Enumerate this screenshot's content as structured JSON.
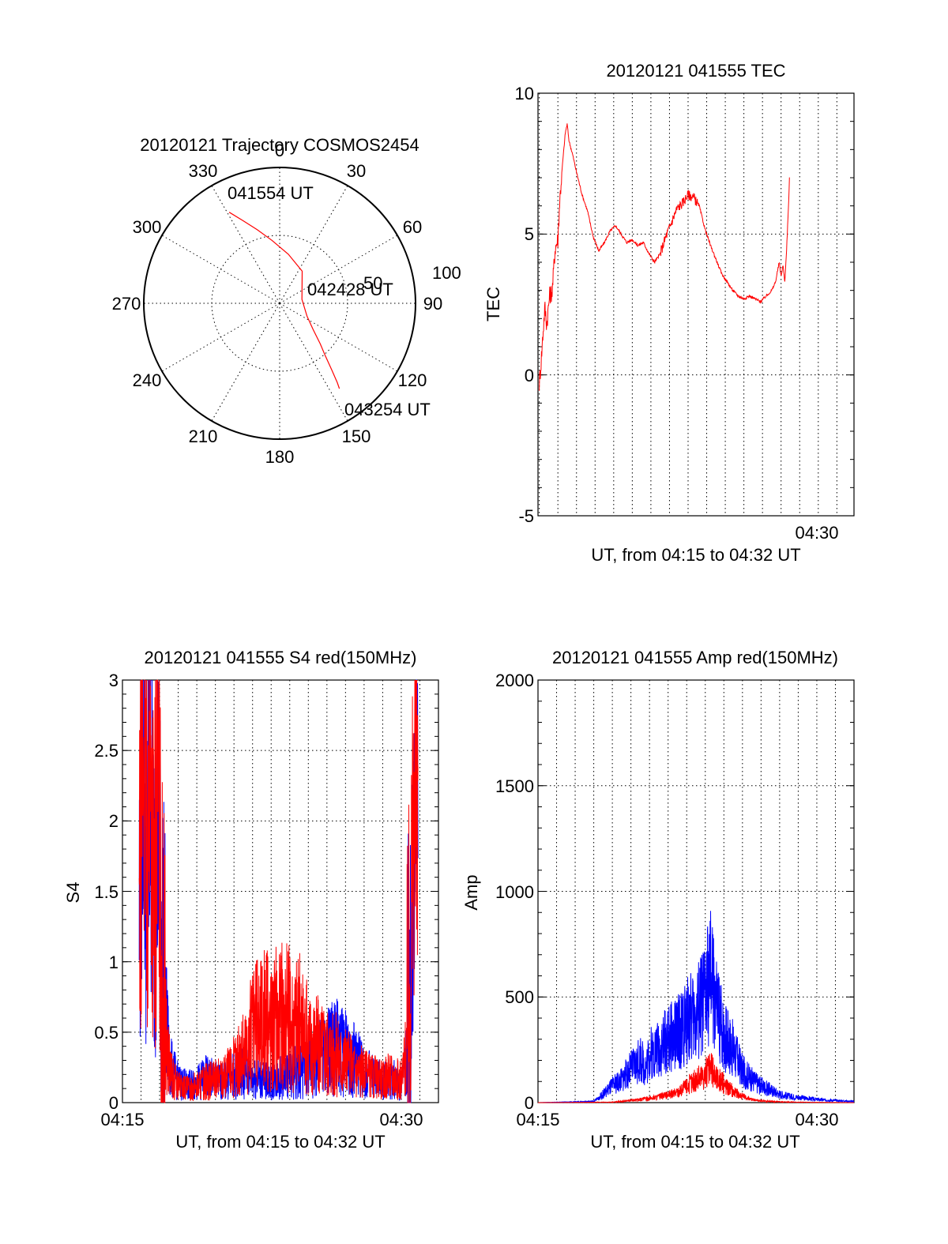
{
  "chart_data": [
    {
      "type": "polar",
      "title": "20120121 Trajectory COSMOS2454",
      "angle_ticks": [
        "0",
        "30",
        "60",
        "90",
        "120",
        "150",
        "180",
        "210",
        "240",
        "270",
        "300",
        "330"
      ],
      "radial_ticks": [
        "50",
        "100"
      ],
      "rlim": [
        0,
        100
      ],
      "grid": true,
      "series": [
        {
          "color": "#ff0000",
          "points": [
            {
              "az": 331,
              "el": 21
            },
            {
              "az": 336,
              "el": 30
            },
            {
              "az": 343,
              "el": 39
            },
            {
              "az": 353,
              "el": 48
            },
            {
              "az": 10,
              "el": 57
            },
            {
              "az": 35,
              "el": 64
            },
            {
              "az": 80,
              "el": 75
            },
            {
              "az": 115,
              "el": 70
            },
            {
              "az": 128,
              "el": 62
            },
            {
              "az": 135,
              "el": 52
            },
            {
              "az": 139,
              "el": 44
            },
            {
              "az": 142,
              "el": 34
            },
            {
              "az": 144,
              "el": 25
            },
            {
              "az": 145,
              "el": 21
            }
          ]
        }
      ],
      "annotations": [
        {
          "text": "041554 UT",
          "az": 331,
          "el": 21
        },
        {
          "text": "042428 UT",
          "az": 80,
          "el": 75
        },
        {
          "text": "043254 UT",
          "az": 145,
          "el": 21
        }
      ]
    },
    {
      "type": "line",
      "title": "20120121 041555 TEC",
      "ylabel": "TEC",
      "xlabel": "UT, from 04:15 to 04:32 UT",
      "x_tick_label": "04:30",
      "xlim_minutes": [
        15.93,
        32.92
      ],
      "ylim": [
        -5,
        10
      ],
      "y_ticks": [
        "10",
        "5",
        "0",
        "-5"
      ],
      "grid": true,
      "series": [
        {
          "color": "#ff0000",
          "points": [
            [
              16.0,
              -0.3
            ],
            [
              16.1,
              0.5
            ],
            [
              16.2,
              1.5
            ],
            [
              16.3,
              2.4
            ],
            [
              16.4,
              1.8
            ],
            [
              16.55,
              2.8
            ],
            [
              16.7,
              3.0
            ],
            [
              16.85,
              4.5
            ],
            [
              17.0,
              4.8
            ],
            [
              17.1,
              6.2
            ],
            [
              17.25,
              7.5
            ],
            [
              17.4,
              8.6
            ],
            [
              17.5,
              8.9
            ],
            [
              17.6,
              8.3
            ],
            [
              17.8,
              7.8
            ],
            [
              18.0,
              7.2
            ],
            [
              18.3,
              6.4
            ],
            [
              18.6,
              5.8
            ],
            [
              18.9,
              4.9
            ],
            [
              19.2,
              4.4
            ],
            [
              19.5,
              4.7
            ],
            [
              19.8,
              5.1
            ],
            [
              20.1,
              5.3
            ],
            [
              20.4,
              5.0
            ],
            [
              20.7,
              4.7
            ],
            [
              21.0,
              4.8
            ],
            [
              21.3,
              4.6
            ],
            [
              21.6,
              4.7
            ],
            [
              21.9,
              4.3
            ],
            [
              22.2,
              4.0
            ],
            [
              22.5,
              4.3
            ],
            [
              22.8,
              4.9
            ],
            [
              23.1,
              5.4
            ],
            [
              23.4,
              5.9
            ],
            [
              23.7,
              6.1
            ],
            [
              24.0,
              6.4
            ],
            [
              24.3,
              6.3
            ],
            [
              24.6,
              6.0
            ],
            [
              24.9,
              5.2
            ],
            [
              25.2,
              4.6
            ],
            [
              25.5,
              4.1
            ],
            [
              25.8,
              3.6
            ],
            [
              26.1,
              3.3
            ],
            [
              26.4,
              3.0
            ],
            [
              26.7,
              2.8
            ],
            [
              27.0,
              2.7
            ],
            [
              27.3,
              2.8
            ],
            [
              27.6,
              2.7
            ],
            [
              27.9,
              2.6
            ],
            [
              28.2,
              2.8
            ],
            [
              28.5,
              3.0
            ],
            [
              28.7,
              3.3
            ],
            [
              28.9,
              4.0
            ],
            [
              29.0,
              3.5
            ],
            [
              29.1,
              3.9
            ],
            [
              29.2,
              3.3
            ],
            [
              29.3,
              4.5
            ],
            [
              29.4,
              6.0
            ],
            [
              29.45,
              7.0
            ]
          ]
        }
      ]
    },
    {
      "type": "line",
      "title": "20120121 041555 S4 red(150MHz)",
      "ylabel": "S4",
      "xlabel": "UT, from 04:15 to 04:32 UT",
      "x_tick_labels": [
        "04:15",
        "04:30"
      ],
      "xlim_minutes": [
        15.0,
        32.0
      ],
      "ylim": [
        0,
        3
      ],
      "y_ticks": [
        "3",
        "2.5",
        "2",
        "1.5",
        "1",
        "0.5",
        "0"
      ],
      "grid": true,
      "series": [
        {
          "color": "#0000ff",
          "points": [
            [
              15.9,
              1.4
            ],
            [
              16.1,
              2.5
            ],
            [
              16.3,
              1.6
            ],
            [
              16.5,
              2.2
            ],
            [
              16.7,
              1.5
            ],
            [
              16.9,
              2.0
            ],
            [
              17.1,
              1.2
            ],
            [
              17.3,
              0.6
            ],
            [
              17.6,
              0.25
            ],
            [
              18.0,
              0.15
            ],
            [
              18.5,
              0.12
            ],
            [
              19.0,
              0.14
            ],
            [
              19.5,
              0.18
            ],
            [
              20.0,
              0.16
            ],
            [
              20.5,
              0.15
            ],
            [
              21.0,
              0.2
            ],
            [
              21.5,
              0.22
            ],
            [
              22.0,
              0.18
            ],
            [
              22.5,
              0.16
            ],
            [
              23.0,
              0.14
            ],
            [
              23.5,
              0.18
            ],
            [
              24.0,
              0.2
            ],
            [
              24.5,
              0.22
            ],
            [
              25.0,
              0.25
            ],
            [
              25.5,
              0.3
            ],
            [
              26.0,
              0.35
            ],
            [
              26.5,
              0.4
            ],
            [
              27.0,
              0.35
            ],
            [
              27.5,
              0.3
            ],
            [
              28.0,
              0.22
            ],
            [
              28.5,
              0.18
            ],
            [
              29.0,
              0.15
            ],
            [
              29.5,
              0.18
            ],
            [
              30.0,
              0.12
            ],
            [
              30.3,
              0.3
            ],
            [
              30.5,
              1.0
            ],
            [
              30.7,
              2.0
            ],
            [
              30.9,
              2.8
            ]
          ]
        },
        {
          "color": "#ff0000",
          "points": [
            [
              15.9,
              1.2
            ],
            [
              16.1,
              2.6
            ],
            [
              16.3,
              1.8
            ],
            [
              16.5,
              2.4
            ],
            [
              16.7,
              1.4
            ],
            [
              16.9,
              2.3
            ],
            [
              17.1,
              1.1
            ],
            [
              17.3,
              0.5
            ],
            [
              17.6,
              0.2
            ],
            [
              18.0,
              0.12
            ],
            [
              18.5,
              0.1
            ],
            [
              19.0,
              0.12
            ],
            [
              19.5,
              0.15
            ],
            [
              20.0,
              0.16
            ],
            [
              20.5,
              0.2
            ],
            [
              21.0,
              0.25
            ],
            [
              21.5,
              0.35
            ],
            [
              22.0,
              0.5
            ],
            [
              22.5,
              0.6
            ],
            [
              23.0,
              0.55
            ],
            [
              23.5,
              0.62
            ],
            [
              24.0,
              0.6
            ],
            [
              24.5,
              0.58
            ],
            [
              25.0,
              0.45
            ],
            [
              25.5,
              0.42
            ],
            [
              26.0,
              0.38
            ],
            [
              26.5,
              0.35
            ],
            [
              27.0,
              0.28
            ],
            [
              27.5,
              0.25
            ],
            [
              28.0,
              0.2
            ],
            [
              28.5,
              0.18
            ],
            [
              29.0,
              0.16
            ],
            [
              29.5,
              0.2
            ],
            [
              30.0,
              0.15
            ],
            [
              30.3,
              0.4
            ],
            [
              30.5,
              1.2
            ],
            [
              30.7,
              2.2
            ],
            [
              30.9,
              2.4
            ]
          ]
        }
      ]
    },
    {
      "type": "line",
      "title": "20120121 041555 Amp red(150MHz)",
      "ylabel": "Amp",
      "xlabel": "UT, from 04:15 to 04:32 UT",
      "x_tick_labels": [
        "04:15",
        "04:30"
      ],
      "xlim_minutes": [
        15.0,
        32.0
      ],
      "ylim": [
        0,
        2000
      ],
      "y_ticks": [
        "2000",
        "1500",
        "1000",
        "500",
        "0"
      ],
      "grid": true,
      "series": [
        {
          "color": "#0000ff",
          "points": [
            [
              15.0,
              0
            ],
            [
              18.0,
              5
            ],
            [
              18.5,
              40
            ],
            [
              19.0,
              80
            ],
            [
              19.5,
              110
            ],
            [
              20.0,
              160
            ],
            [
              20.5,
              200
            ],
            [
              20.8,
              170
            ],
            [
              21.0,
              230
            ],
            [
              21.5,
              260
            ],
            [
              22.0,
              300
            ],
            [
              22.5,
              330
            ],
            [
              23.0,
              380
            ],
            [
              23.5,
              420
            ],
            [
              24.0,
              500
            ],
            [
              24.3,
              600
            ],
            [
              24.6,
              450
            ],
            [
              25.0,
              330
            ],
            [
              25.5,
              250
            ],
            [
              26.0,
              150
            ],
            [
              26.5,
              110
            ],
            [
              27.0,
              80
            ],
            [
              27.5,
              60
            ],
            [
              28.0,
              40
            ],
            [
              28.5,
              30
            ],
            [
              29.0,
              25
            ],
            [
              29.5,
              20
            ],
            [
              30.0,
              15
            ],
            [
              30.5,
              12
            ],
            [
              31.0,
              10
            ],
            [
              31.5,
              8
            ],
            [
              32.0,
              5
            ]
          ]
        },
        {
          "color": "#ff0000",
          "points": [
            [
              15.0,
              0
            ],
            [
              19.0,
              2
            ],
            [
              20.0,
              10
            ],
            [
              21.0,
              20
            ],
            [
              22.0,
              35
            ],
            [
              22.5,
              50
            ],
            [
              23.0,
              80
            ],
            [
              23.5,
              110
            ],
            [
              24.0,
              140
            ],
            [
              24.3,
              160
            ],
            [
              24.6,
              120
            ],
            [
              25.0,
              90
            ],
            [
              25.5,
              55
            ],
            [
              26.0,
              30
            ],
            [
              26.5,
              15
            ],
            [
              27.0,
              8
            ],
            [
              28.0,
              4
            ],
            [
              29.0,
              2
            ],
            [
              30.0,
              1
            ],
            [
              32.0,
              0
            ]
          ]
        }
      ]
    }
  ]
}
